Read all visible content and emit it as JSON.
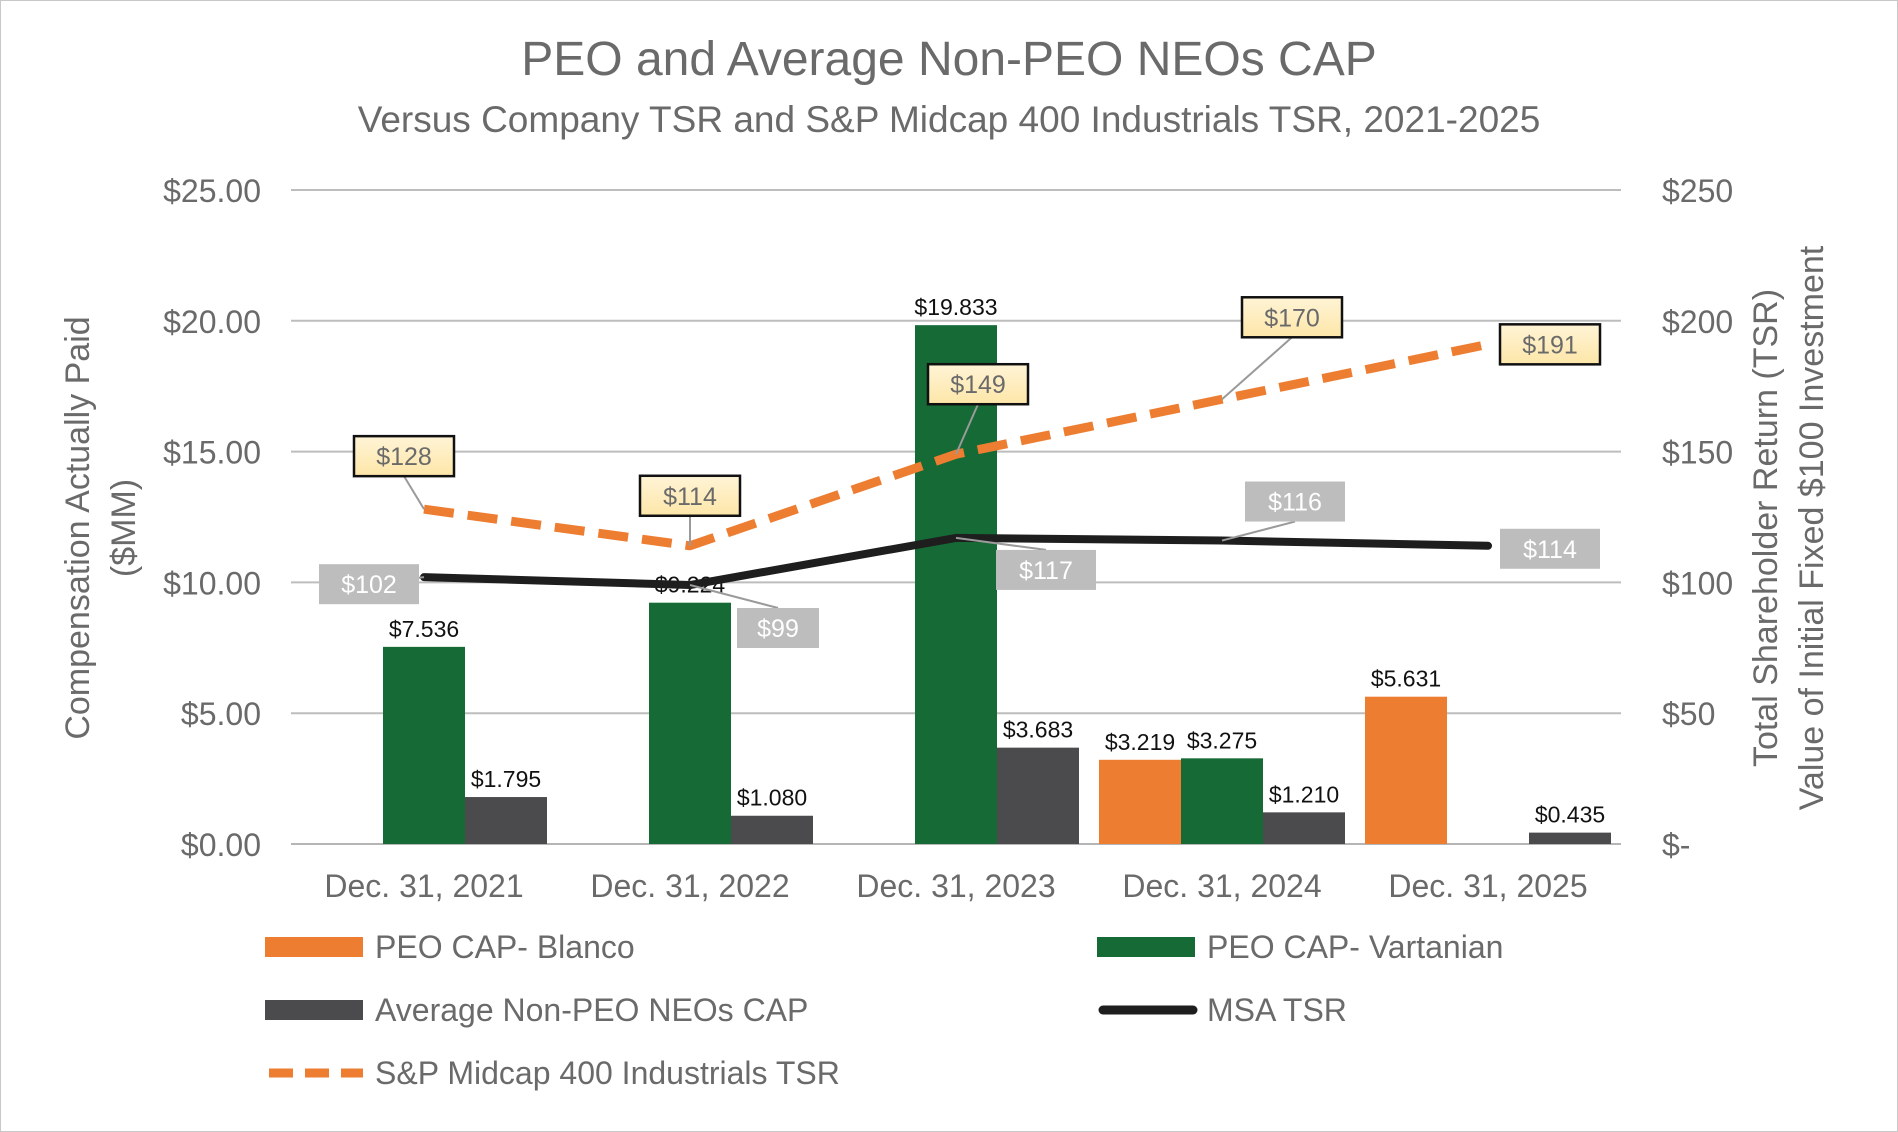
{
  "chart_data": {
    "type": "bar",
    "title": "PEO and Average Non-PEO NEOs CAP",
    "subtitle": "Versus Company TSR and S&P Midcap 400 Industrials TSR, 2021-2025",
    "ylabel": [
      "Compensation Actually Paid",
      "($MM)"
    ],
    "y2label": [
      "Total Shareholder Return (TSR)",
      "Value of Initial Fixed $100 Investment"
    ],
    "ylim": [
      0,
      25
    ],
    "y2lim": [
      0,
      250
    ],
    "yticks": [
      "$0.00",
      "$5.00",
      "$10.00",
      "$15.00",
      "$20.00",
      "$25.00"
    ],
    "y2ticks": [
      "$-",
      "$50",
      "$100",
      "$150",
      "$200",
      "$250"
    ],
    "grid": true,
    "legend_position": "bottom",
    "categories": [
      "Dec. 31, 2021",
      "Dec. 31, 2022",
      "Dec. 31, 2023",
      "Dec. 31, 2024",
      "Dec. 31, 2025"
    ],
    "series": [
      {
        "name": "PEO CAP- Blanco",
        "kind": "bar",
        "color": "#ed7d31",
        "values": [
          null,
          null,
          null,
          3.219,
          5.631
        ],
        "labels": [
          null,
          null,
          null,
          "$3.219",
          "$5.631"
        ]
      },
      {
        "name": "PEO CAP- Vartanian",
        "kind": "bar",
        "color": "#166a36",
        "values": [
          7.536,
          9.224,
          19.833,
          3.275,
          null
        ],
        "labels": [
          "$7.536",
          "$9.224",
          "$19.833",
          "$3.275",
          null
        ]
      },
      {
        "name": "Average Non-PEO NEOs CAP",
        "kind": "bar",
        "color": "#4b4b4d",
        "values": [
          1.795,
          1.08,
          3.683,
          1.21,
          0.435
        ],
        "labels": [
          "$1.795",
          "$1.080",
          "$3.683",
          "$1.210",
          "$0.435"
        ]
      },
      {
        "name": "MSA TSR",
        "kind": "line",
        "axis": "right",
        "color": "#1e1e1e",
        "values": [
          102,
          99,
          117,
          116,
          114
        ],
        "labels": [
          "$102",
          "$99",
          "$117",
          "$116",
          "$114"
        ]
      },
      {
        "name": "S&P Midcap 400 Industrials TSR",
        "kind": "line",
        "dashed": true,
        "axis": "right",
        "color": "#ed7d31",
        "values": [
          128,
          114,
          149,
          170,
          191
        ],
        "labels": [
          "$128",
          "$114",
          "$149",
          "$170",
          "$191"
        ]
      }
    ]
  }
}
